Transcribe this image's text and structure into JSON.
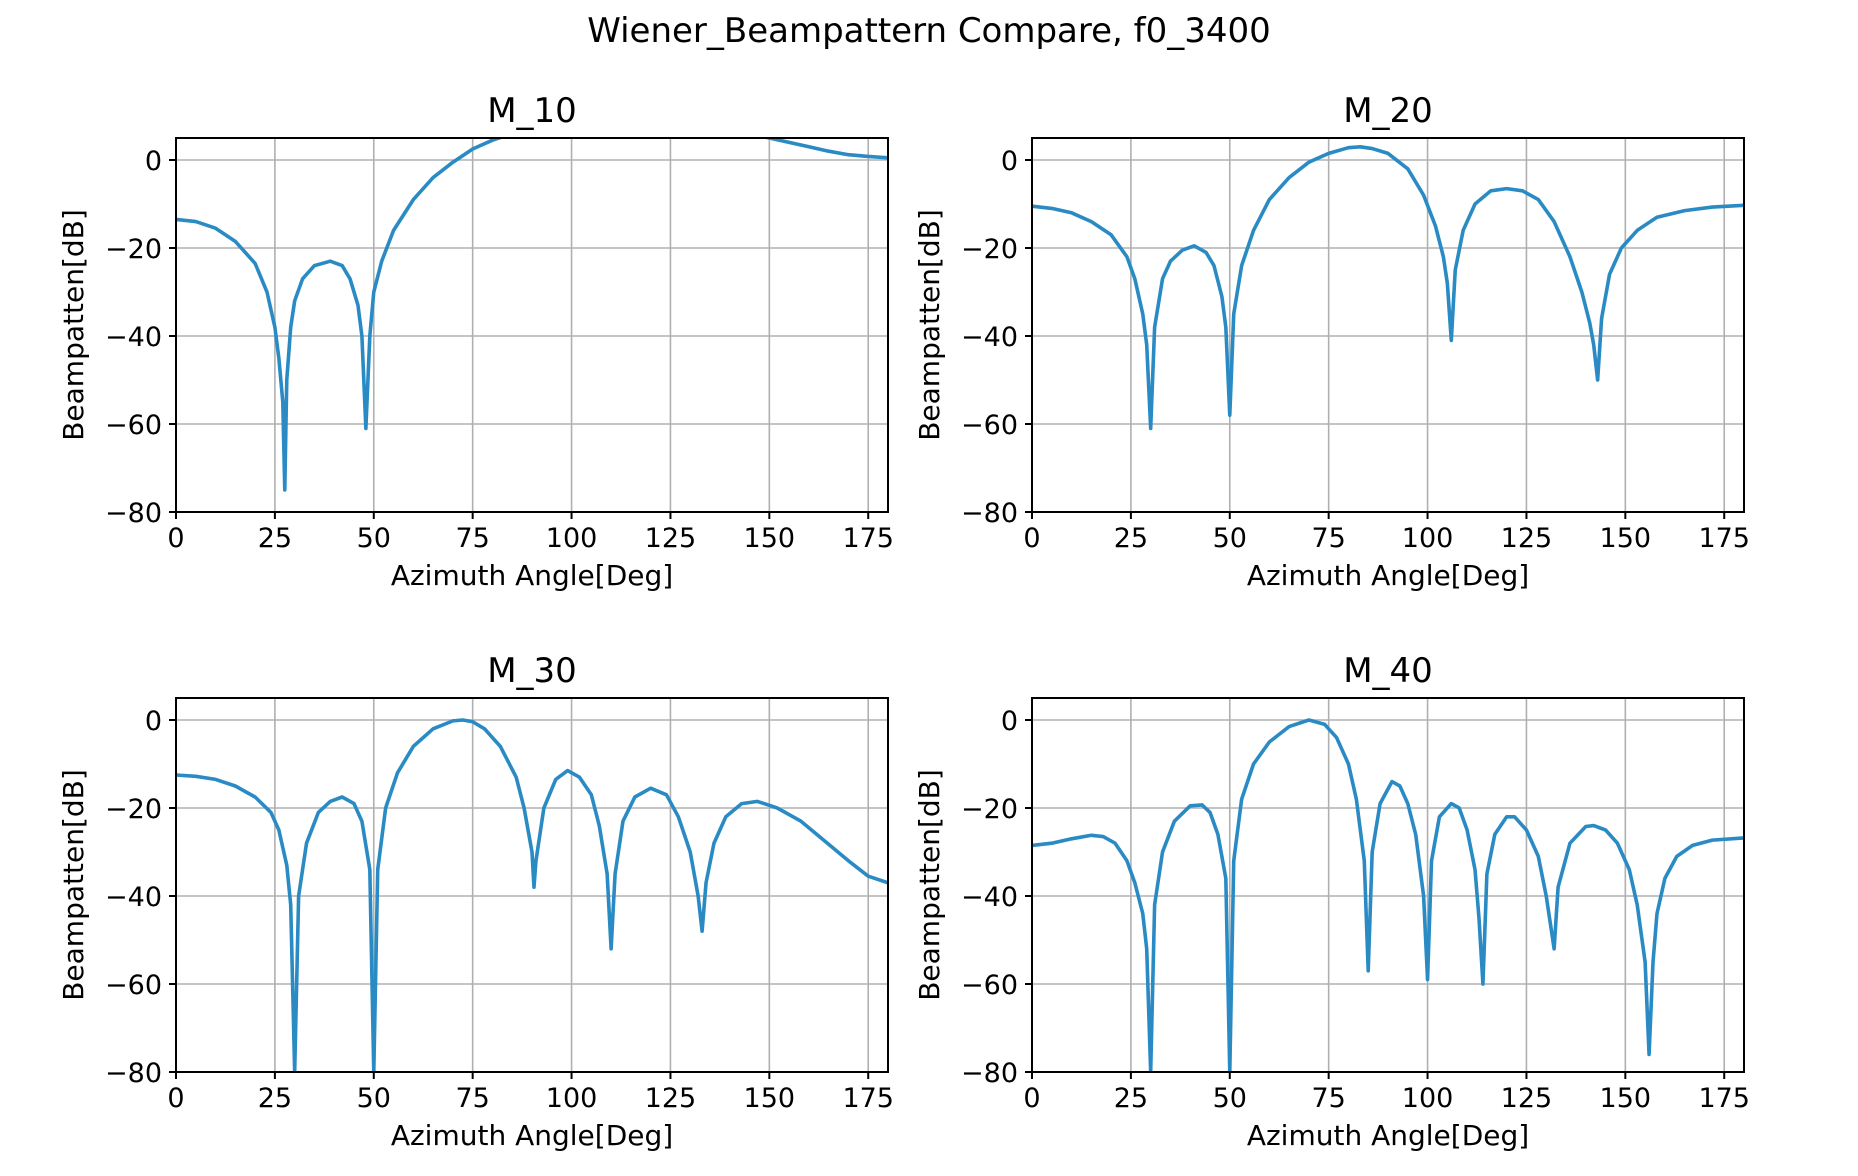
{
  "figure": {
    "title": "Wiener_Beampattern Compare, f0_3400"
  },
  "colors": {
    "series": "#2a8bc4",
    "grid": "#b0b0b0",
    "axes": "#000000"
  },
  "chart_data": [
    {
      "type": "line",
      "title": "M_10",
      "xlabel": "Azimuth Angle[Deg]",
      "ylabel": "Beampatten[dB]",
      "xlim": [
        0,
        180
      ],
      "ylim": [
        -80,
        5
      ],
      "xticks": [
        0,
        25,
        50,
        75,
        100,
        125,
        150,
        175
      ],
      "yticks": [
        -80,
        -60,
        -40,
        -20,
        0
      ],
      "grid": true,
      "series": [
        {
          "points": [
            [
              0,
              -13.5
            ],
            [
              5,
              -14
            ],
            [
              10,
              -15.5
            ],
            [
              15,
              -18.5
            ],
            [
              20,
              -23.5
            ],
            [
              23,
              -30
            ],
            [
              25,
              -38
            ],
            [
              26,
              -45
            ],
            [
              27,
              -55
            ],
            [
              27.5,
              -75
            ],
            [
              28,
              -50
            ],
            [
              29,
              -38
            ],
            [
              30,
              -32
            ],
            [
              32,
              -27
            ],
            [
              35,
              -24
            ],
            [
              39,
              -23
            ],
            [
              42,
              -24
            ],
            [
              44,
              -27
            ],
            [
              46,
              -33
            ],
            [
              47,
              -40
            ],
            [
              48,
              -61
            ],
            [
              49,
              -40
            ],
            [
              50,
              -30
            ],
            [
              52,
              -23
            ],
            [
              55,
              -16
            ],
            [
              60,
              -9
            ],
            [
              65,
              -4
            ],
            [
              70,
              -0.5
            ],
            [
              75,
              2.5
            ],
            [
              80,
              4.5
            ],
            [
              85,
              6
            ],
            [
              95,
              8
            ],
            [
              110,
              9
            ],
            [
              130,
              8
            ],
            [
              145,
              6
            ],
            [
              150,
              5
            ],
            [
              155,
              4
            ],
            [
              160,
              3
            ],
            [
              165,
              2
            ],
            [
              170,
              1.2
            ],
            [
              175,
              0.8
            ],
            [
              180,
              0.5
            ]
          ]
        }
      ]
    },
    {
      "type": "line",
      "title": "M_20",
      "xlabel": "Azimuth Angle[Deg]",
      "ylabel": "Beampatten[dB]",
      "xlim": [
        0,
        180
      ],
      "ylim": [
        -80,
        5
      ],
      "xticks": [
        0,
        25,
        50,
        75,
        100,
        125,
        150,
        175
      ],
      "yticks": [
        -80,
        -60,
        -40,
        -20,
        0
      ],
      "grid": true,
      "series": [
        {
          "points": [
            [
              0,
              -10.5
            ],
            [
              5,
              -11
            ],
            [
              10,
              -12
            ],
            [
              15,
              -14
            ],
            [
              20,
              -17
            ],
            [
              24,
              -22
            ],
            [
              26,
              -27
            ],
            [
              28,
              -35
            ],
            [
              29,
              -42
            ],
            [
              30,
              -61
            ],
            [
              31,
              -38
            ],
            [
              33,
              -27
            ],
            [
              35,
              -23
            ],
            [
              38,
              -20.5
            ],
            [
              41,
              -19.5
            ],
            [
              44,
              -21
            ],
            [
              46,
              -24
            ],
            [
              48,
              -31
            ],
            [
              49,
              -38
            ],
            [
              50,
              -58
            ],
            [
              51,
              -35
            ],
            [
              53,
              -24
            ],
            [
              56,
              -16
            ],
            [
              60,
              -9
            ],
            [
              65,
              -4
            ],
            [
              70,
              -0.5
            ],
            [
              75,
              1.5
            ],
            [
              80,
              2.8
            ],
            [
              83,
              3
            ],
            [
              86,
              2.6
            ],
            [
              90,
              1.5
            ],
            [
              95,
              -2
            ],
            [
              99,
              -8
            ],
            [
              102,
              -15
            ],
            [
              104,
              -22
            ],
            [
              105,
              -28
            ],
            [
              106,
              -41
            ],
            [
              107,
              -25
            ],
            [
              109,
              -16
            ],
            [
              112,
              -10
            ],
            [
              116,
              -7
            ],
            [
              120,
              -6.5
            ],
            [
              124,
              -7
            ],
            [
              128,
              -9
            ],
            [
              132,
              -14
            ],
            [
              136,
              -22
            ],
            [
              139,
              -30
            ],
            [
              141,
              -37
            ],
            [
              142,
              -42
            ],
            [
              143,
              -50
            ],
            [
              144,
              -36
            ],
            [
              146,
              -26
            ],
            [
              149,
              -20
            ],
            [
              153,
              -16
            ],
            [
              158,
              -13
            ],
            [
              165,
              -11.5
            ],
            [
              172,
              -10.7
            ],
            [
              180,
              -10.3
            ]
          ]
        }
      ]
    },
    {
      "type": "line",
      "title": "M_30",
      "xlabel": "Azimuth Angle[Deg]",
      "ylabel": "Beampatten[dB]",
      "xlim": [
        0,
        180
      ],
      "ylim": [
        -80,
        5
      ],
      "xticks": [
        0,
        25,
        50,
        75,
        100,
        125,
        150,
        175
      ],
      "yticks": [
        -80,
        -60,
        -40,
        -20,
        0
      ],
      "grid": true,
      "series": [
        {
          "points": [
            [
              0,
              -12.5
            ],
            [
              5,
              -12.8
            ],
            [
              10,
              -13.5
            ],
            [
              15,
              -15
            ],
            [
              20,
              -17.5
            ],
            [
              24,
              -21
            ],
            [
              26,
              -25
            ],
            [
              28,
              -33
            ],
            [
              29,
              -42
            ],
            [
              30,
              -80
            ],
            [
              31,
              -40
            ],
            [
              33,
              -28
            ],
            [
              36,
              -21
            ],
            [
              39,
              -18.5
            ],
            [
              42,
              -17.5
            ],
            [
              45,
              -19
            ],
            [
              47,
              -23
            ],
            [
              49,
              -34
            ],
            [
              50,
              -80
            ],
            [
              51,
              -34
            ],
            [
              53,
              -20
            ],
            [
              56,
              -12
            ],
            [
              60,
              -6
            ],
            [
              65,
              -2
            ],
            [
              70,
              -0.2
            ],
            [
              72.5,
              0
            ],
            [
              75,
              -0.4
            ],
            [
              78,
              -2
            ],
            [
              82,
              -6
            ],
            [
              86,
              -13
            ],
            [
              88,
              -20
            ],
            [
              90,
              -30
            ],
            [
              90.5,
              -38
            ],
            [
              91,
              -32
            ],
            [
              93,
              -20
            ],
            [
              96,
              -13.5
            ],
            [
              99,
              -11.5
            ],
            [
              102,
              -13
            ],
            [
              105,
              -17
            ],
            [
              107,
              -24
            ],
            [
              109,
              -35
            ],
            [
              110,
              -52
            ],
            [
              111,
              -35
            ],
            [
              113,
              -23
            ],
            [
              116,
              -17.5
            ],
            [
              120,
              -15.5
            ],
            [
              124,
              -17
            ],
            [
              127,
              -22
            ],
            [
              130,
              -30
            ],
            [
              132,
              -40
            ],
            [
              133,
              -48
            ],
            [
              134,
              -37
            ],
            [
              136,
              -28
            ],
            [
              139,
              -22
            ],
            [
              143,
              -19
            ],
            [
              147,
              -18.5
            ],
            [
              152,
              -20
            ],
            [
              158,
              -23
            ],
            [
              164,
              -27.5
            ],
            [
              170,
              -32
            ],
            [
              175,
              -35.5
            ],
            [
              180,
              -37
            ]
          ]
        }
      ]
    },
    {
      "type": "line",
      "title": "M_40",
      "xlabel": "Azimuth Angle[Deg]",
      "ylabel": "Beampatten[dB]",
      "xlim": [
        0,
        180
      ],
      "ylim": [
        -80,
        5
      ],
      "xticks": [
        0,
        25,
        50,
        75,
        100,
        125,
        150,
        175
      ],
      "yticks": [
        -80,
        -60,
        -40,
        -20,
        0
      ],
      "grid": true,
      "series": [
        {
          "points": [
            [
              0,
              -28.5
            ],
            [
              5,
              -28
            ],
            [
              10,
              -27
            ],
            [
              15,
              -26.2
            ],
            [
              18,
              -26.5
            ],
            [
              21,
              -28
            ],
            [
              24,
              -32
            ],
            [
              26,
              -37
            ],
            [
              28,
              -44
            ],
            [
              29,
              -52
            ],
            [
              30,
              -80
            ],
            [
              31,
              -42
            ],
            [
              33,
              -30
            ],
            [
              36,
              -23
            ],
            [
              40,
              -19.5
            ],
            [
              43,
              -19.3
            ],
            [
              45,
              -21
            ],
            [
              47,
              -26
            ],
            [
              49,
              -36
            ],
            [
              50,
              -80
            ],
            [
              51,
              -32
            ],
            [
              53,
              -18
            ],
            [
              56,
              -10
            ],
            [
              60,
              -5
            ],
            [
              65,
              -1.5
            ],
            [
              70,
              0
            ],
            [
              74,
              -1
            ],
            [
              77,
              -4
            ],
            [
              80,
              -10
            ],
            [
              82,
              -18
            ],
            [
              84,
              -32
            ],
            [
              85,
              -57
            ],
            [
              86,
              -30
            ],
            [
              88,
              -19
            ],
            [
              91,
              -14
            ],
            [
              93,
              -15
            ],
            [
              95,
              -19
            ],
            [
              97,
              -26
            ],
            [
              99,
              -40
            ],
            [
              100,
              -59
            ],
            [
              101,
              -32
            ],
            [
              103,
              -22
            ],
            [
              106,
              -19
            ],
            [
              108,
              -20
            ],
            [
              110,
              -25
            ],
            [
              112,
              -34
            ],
            [
              113,
              -45
            ],
            [
              114,
              -60
            ],
            [
              115,
              -35
            ],
            [
              117,
              -26
            ],
            [
              120,
              -22
            ],
            [
              122,
              -22
            ],
            [
              125,
              -25
            ],
            [
              128,
              -31
            ],
            [
              130,
              -40
            ],
            [
              131,
              -46
            ],
            [
              132,
              -52
            ],
            [
              133,
              -38
            ],
            [
              136,
              -28
            ],
            [
              140,
              -24.2
            ],
            [
              142,
              -24
            ],
            [
              145,
              -25
            ],
            [
              148,
              -28
            ],
            [
              151,
              -34
            ],
            [
              153,
              -42
            ],
            [
              155,
              -55
            ],
            [
              156,
              -76
            ],
            [
              157,
              -55
            ],
            [
              158,
              -44
            ],
            [
              160,
              -36
            ],
            [
              163,
              -31
            ],
            [
              167,
              -28.5
            ],
            [
              172,
              -27.3
            ],
            [
              180,
              -26.8
            ]
          ]
        }
      ]
    }
  ]
}
